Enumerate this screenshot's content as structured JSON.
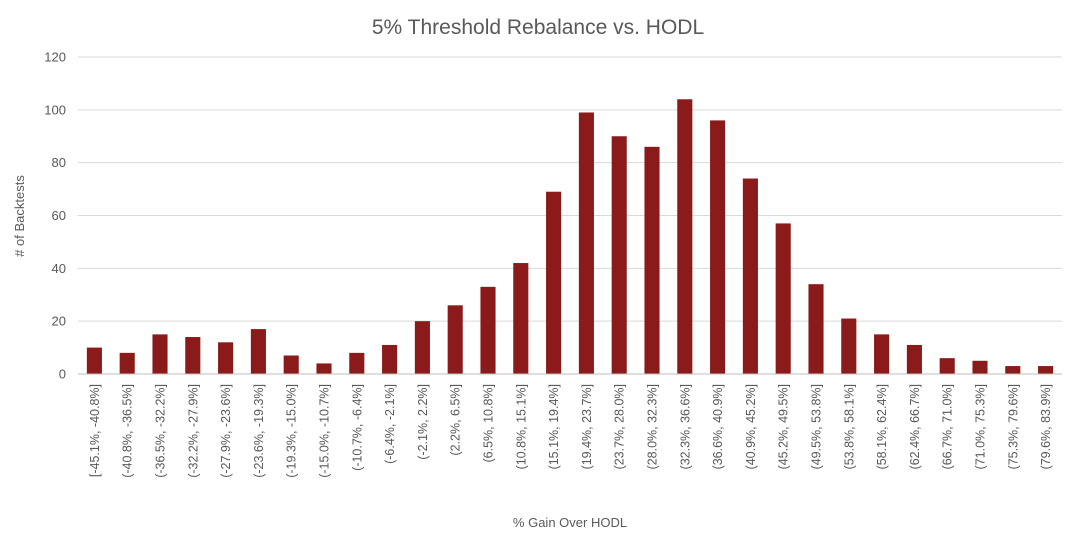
{
  "chart_data": {
    "type": "bar",
    "title": "5% Threshold Rebalance vs. HODL",
    "xlabel": "% Gain Over HODL",
    "ylabel": "# of Backtests",
    "ylim": [
      0,
      120
    ],
    "yticks": [
      0,
      20,
      40,
      60,
      80,
      100,
      120
    ],
    "grid": true,
    "bar_color": "#8B1A1A",
    "categories": [
      "[-45.1%, -40.8%]",
      "(-40.8%, -36.5%]",
      "(-36.5%, -32.2%]",
      "(-32.2%, -27.9%]",
      "(-27.9%, -23.6%]",
      "(-23.6%, -19.3%]",
      "(-19.3%, -15.0%]",
      "(-15.0%, -10.7%]",
      "(-10.7%, -6.4%]",
      "(-6.4%, -2.1%]",
      "(-2.1%, 2.2%]",
      "(2.2%, 6.5%]",
      "(6.5%, 10.8%]",
      "(10.8%, 15.1%]",
      "(15.1%, 19.4%]",
      "(19.4%, 23.7%]",
      "(23.7%, 28.0%]",
      "(28.0%, 32.3%]",
      "(32.3%, 36.6%]",
      "(36.6%, 40.9%]",
      "(40.9%, 45.2%]",
      "(45.2%, 49.5%]",
      "(49.5%, 53.8%]",
      "(53.8%, 58.1%]",
      "(58.1%, 62.4%]",
      "(62.4%, 66.7%]",
      "(66.7%, 71.0%]",
      "(71.0%, 75.3%]",
      "(75.3%, 79.6%]",
      "(79.6%, 83.9%]"
    ],
    "values": [
      10,
      8,
      15,
      14,
      12,
      17,
      7,
      4,
      8,
      11,
      20,
      26,
      33,
      42,
      69,
      99,
      90,
      86,
      104,
      96,
      74,
      57,
      34,
      21,
      15,
      11,
      6,
      5,
      3,
      3
    ]
  }
}
